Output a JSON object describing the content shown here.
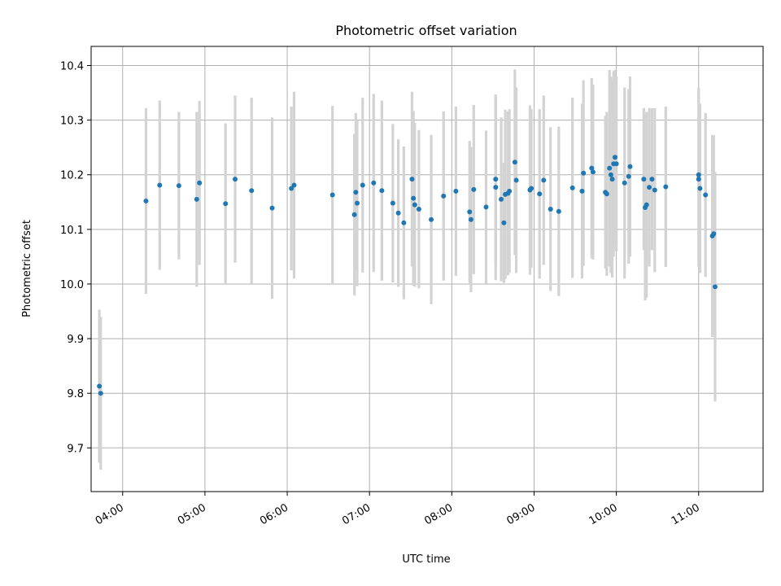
{
  "chart_data": {
    "type": "scatter",
    "title": "Photometric offset variation",
    "xlabel": "UTC time",
    "ylabel": "Photometric offset",
    "x_axis": {
      "kind": "time",
      "xlim": [
        "03:37",
        "11:47"
      ],
      "ticks": [
        "04:00",
        "05:00",
        "06:00",
        "07:00",
        "08:00",
        "09:00",
        "10:00",
        "11:00"
      ]
    },
    "y_axis": {
      "ylim": [
        9.62,
        10.435
      ],
      "ticks": [
        "9.7",
        "9.8",
        "9.9",
        "10.0",
        "10.1",
        "10.2",
        "10.3",
        "10.4"
      ]
    },
    "grid": true,
    "colors": {
      "point": "#1f77b4",
      "errorbar": "#d3d3d3"
    },
    "points": [
      {
        "t": "03:43",
        "y": 9.813,
        "err": 0.14
      },
      {
        "t": "03:44",
        "y": 9.8,
        "err": 0.14
      },
      {
        "t": "04:17",
        "y": 10.152,
        "err": 0.17
      },
      {
        "t": "04:27",
        "y": 10.181,
        "err": 0.155
      },
      {
        "t": "04:41",
        "y": 10.18,
        "err": 0.135
      },
      {
        "t": "04:54",
        "y": 10.155,
        "err": 0.16
      },
      {
        "t": "04:56",
        "y": 10.185,
        "err": 0.15
      },
      {
        "t": "05:15",
        "y": 10.147,
        "err": 0.147
      },
      {
        "t": "05:22",
        "y": 10.192,
        "err": 0.153
      },
      {
        "t": "05:34",
        "y": 10.171,
        "err": 0.17
      },
      {
        "t": "05:49",
        "y": 10.139,
        "err": 0.166
      },
      {
        "t": "06:03",
        "y": 10.175,
        "err": 0.15
      },
      {
        "t": "06:05",
        "y": 10.181,
        "err": 0.171
      },
      {
        "t": "06:33",
        "y": 10.163,
        "err": 0.163
      },
      {
        "t": "06:49",
        "y": 10.127,
        "err": 0.148
      },
      {
        "t": "06:50",
        "y": 10.168,
        "err": 0.145
      },
      {
        "t": "06:51",
        "y": 10.148,
        "err": 0.152
      },
      {
        "t": "06:55",
        "y": 10.181,
        "err": 0.16
      },
      {
        "t": "07:03",
        "y": 10.185,
        "err": 0.163
      },
      {
        "t": "07:09",
        "y": 10.171,
        "err": 0.165
      },
      {
        "t": "07:17",
        "y": 10.148,
        "err": 0.145
      },
      {
        "t": "07:21",
        "y": 10.13,
        "err": 0.135
      },
      {
        "t": "07:25",
        "y": 10.112,
        "err": 0.14
      },
      {
        "t": "07:31",
        "y": 10.192,
        "err": 0.16
      },
      {
        "t": "07:32",
        "y": 10.157,
        "err": 0.16
      },
      {
        "t": "07:33",
        "y": 10.145,
        "err": 0.15
      },
      {
        "t": "07:36",
        "y": 10.137,
        "err": 0.145
      },
      {
        "t": "07:45",
        "y": 10.118,
        "err": 0.155
      },
      {
        "t": "07:54",
        "y": 10.161,
        "err": 0.155
      },
      {
        "t": "08:03",
        "y": 10.17,
        "err": 0.155
      },
      {
        "t": "08:13",
        "y": 10.132,
        "err": 0.13
      },
      {
        "t": "08:14",
        "y": 10.118,
        "err": 0.133
      },
      {
        "t": "08:16",
        "y": 10.173,
        "err": 0.155
      },
      {
        "t": "08:25",
        "y": 10.141,
        "err": 0.14
      },
      {
        "t": "08:32",
        "y": 10.192,
        "err": 0.155
      },
      {
        "t": "08:32",
        "y": 10.177,
        "err": 0.17
      },
      {
        "t": "08:36",
        "y": 10.155,
        "err": 0.15
      },
      {
        "t": "08:38",
        "y": 10.112,
        "err": 0.11
      },
      {
        "t": "08:39",
        "y": 10.164,
        "err": 0.155
      },
      {
        "t": "08:41",
        "y": 10.166,
        "err": 0.15
      },
      {
        "t": "08:42",
        "y": 10.17,
        "err": 0.15
      },
      {
        "t": "08:46",
        "y": 10.223,
        "err": 0.17
      },
      {
        "t": "08:47",
        "y": 10.19,
        "err": 0.17
      },
      {
        "t": "08:57",
        "y": 10.172,
        "err": 0.155
      },
      {
        "t": "08:58",
        "y": 10.175,
        "err": 0.145
      },
      {
        "t": "09:04",
        "y": 10.165,
        "err": 0.155
      },
      {
        "t": "09:07",
        "y": 10.19,
        "err": 0.155
      },
      {
        "t": "09:12",
        "y": 10.137,
        "err": 0.15
      },
      {
        "t": "09:18",
        "y": 10.133,
        "err": 0.155
      },
      {
        "t": "09:28",
        "y": 10.176,
        "err": 0.165
      },
      {
        "t": "09:35",
        "y": 10.17,
        "err": 0.16
      },
      {
        "t": "09:36",
        "y": 10.203,
        "err": 0.17
      },
      {
        "t": "09:42",
        "y": 10.212,
        "err": 0.165
      },
      {
        "t": "09:43",
        "y": 10.205,
        "err": 0.16
      },
      {
        "t": "09:52",
        "y": 10.168,
        "err": 0.14
      },
      {
        "t": "09:53",
        "y": 10.165,
        "err": 0.15
      },
      {
        "t": "09:55",
        "y": 10.212,
        "err": 0.18
      },
      {
        "t": "09:56",
        "y": 10.2,
        "err": 0.18
      },
      {
        "t": "09:57",
        "y": 10.192,
        "err": 0.18
      },
      {
        "t": "09:58",
        "y": 10.22,
        "err": 0.17
      },
      {
        "t": "09:59",
        "y": 10.232,
        "err": 0.16
      },
      {
        "t": "10:00",
        "y": 10.22,
        "err": 0.16
      },
      {
        "t": "10:06",
        "y": 10.185,
        "err": 0.175
      },
      {
        "t": "10:09",
        "y": 10.197,
        "err": 0.16
      },
      {
        "t": "10:10",
        "y": 10.215,
        "err": 0.165
      },
      {
        "t": "10:20",
        "y": 10.192,
        "err": 0.13
      },
      {
        "t": "10:21",
        "y": 10.14,
        "err": 0.17
      },
      {
        "t": "10:22",
        "y": 10.145,
        "err": 0.17
      },
      {
        "t": "10:24",
        "y": 10.177,
        "err": 0.145
      },
      {
        "t": "10:26",
        "y": 10.192,
        "err": 0.13
      },
      {
        "t": "10:28",
        "y": 10.172,
        "err": 0.15
      },
      {
        "t": "10:36",
        "y": 10.178,
        "err": 0.147
      },
      {
        "t": "11:00",
        "y": 10.2,
        "err": 0.16
      },
      {
        "t": "11:00",
        "y": 10.192,
        "err": 0.16
      },
      {
        "t": "11:01",
        "y": 10.175,
        "err": 0.155
      },
      {
        "t": "11:05",
        "y": 10.163,
        "err": 0.15
      },
      {
        "t": "11:10",
        "y": 10.088,
        "err": 0.185
      },
      {
        "t": "11:11",
        "y": 10.092,
        "err": 0.18
      },
      {
        "t": "11:12",
        "y": 9.995,
        "err": 0.21
      }
    ]
  }
}
